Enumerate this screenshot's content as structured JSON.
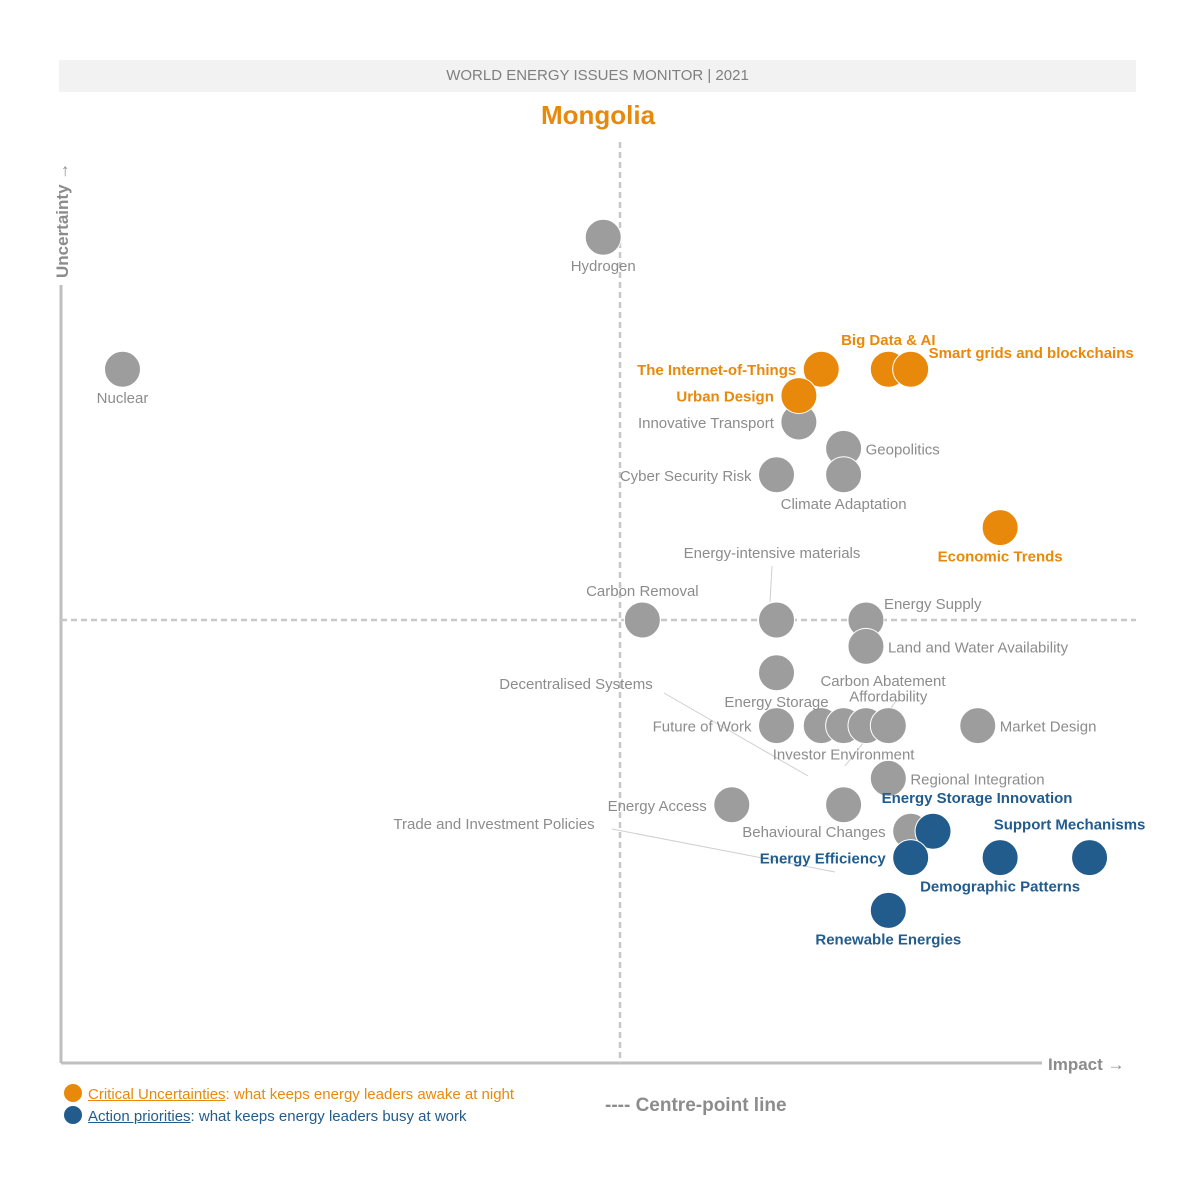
{
  "header": {
    "title": "WORLD ENERGY ISSUES MONITOR | 2021"
  },
  "country": "Mongolia",
  "legend": {
    "critical": {
      "label": "Critical Uncertainties",
      "desc": ": what keeps energy leaders awake at night"
    },
    "action": {
      "label": "Action priorities",
      "desc": ": what keeps energy leaders busy at work"
    },
    "centre_line": "---- Centre-point line"
  },
  "colors": {
    "critical": "#e8890c",
    "action": "#225c8d",
    "other": "#9d9d9d",
    "other_text": "#8c8c8c",
    "axis": "#bfbfbf"
  },
  "chart_data": {
    "type": "scatter",
    "title": "Mongolia",
    "xlabel": "Impact →",
    "ylabel": "Uncertainty →",
    "xlim": [
      0,
      10
    ],
    "ylim": [
      0,
      10
    ],
    "centre_x": 5.0,
    "centre_y": 5.0,
    "grid": false,
    "points": [
      {
        "name": "Hydrogen",
        "category": "other",
        "x": 4.85,
        "y": 9.35,
        "label_pos": "below"
      },
      {
        "name": "Nuclear",
        "category": "other",
        "x": 0.55,
        "y": 7.85,
        "label_pos": "below"
      },
      {
        "name": "Big Data & AI",
        "category": "critical",
        "x": 7.4,
        "y": 7.85,
        "label_pos": "above"
      },
      {
        "name": "Smart grids and blockchains",
        "category": "critical",
        "x": 7.6,
        "y": 7.85,
        "label_pos": "right-up"
      },
      {
        "name": "The Internet-of-Things",
        "category": "critical",
        "x": 6.8,
        "y": 7.85,
        "label_pos": "left"
      },
      {
        "name": "Urban Design",
        "category": "critical",
        "x": 6.6,
        "y": 7.55,
        "label_pos": "left"
      },
      {
        "name": "Innovative Transport",
        "category": "other",
        "x": 6.6,
        "y": 7.25,
        "label_pos": "left"
      },
      {
        "name": "Geopolitics",
        "category": "other",
        "x": 7.0,
        "y": 6.95,
        "label_pos": "right"
      },
      {
        "name": "Cyber Security Risk",
        "category": "other",
        "x": 6.4,
        "y": 6.65,
        "label_pos": "left"
      },
      {
        "name": "Climate Adaptation",
        "category": "other",
        "x": 7.0,
        "y": 6.65,
        "label_pos": "below"
      },
      {
        "name": "Economic Trends",
        "category": "critical",
        "x": 8.4,
        "y": 6.05,
        "label_pos": "below"
      },
      {
        "name": "Carbon Removal",
        "category": "other",
        "x": 5.2,
        "y": 5.0,
        "label_pos": "above"
      },
      {
        "name": "Energy-intensive materials",
        "category": "other",
        "x": 6.4,
        "y": 5.0,
        "label_pos": "callout"
      },
      {
        "name": "Energy Supply",
        "category": "other",
        "x": 7.2,
        "y": 5.0,
        "label_pos": "right-up"
      },
      {
        "name": "Land and Water Availability",
        "category": "other",
        "x": 7.2,
        "y": 4.7,
        "label_pos": "right"
      },
      {
        "name": "Energy Storage",
        "category": "other",
        "x": 6.4,
        "y": 4.4,
        "label_pos": "below"
      },
      {
        "name": "Future of Work",
        "category": "other",
        "x": 6.4,
        "y": 3.8,
        "label_pos": "left"
      },
      {
        "name": "Decentralised Systems",
        "category": "other",
        "x": 6.8,
        "y": 3.8,
        "label_pos": "callout"
      },
      {
        "name": "Investor Environment",
        "category": "other",
        "x": 7.0,
        "y": 3.8,
        "label_pos": "below"
      },
      {
        "name": "Carbon Abatement",
        "category": "other",
        "x": 7.2,
        "y": 3.8,
        "label_pos": "callout"
      },
      {
        "name": "Affordability",
        "category": "other",
        "x": 7.4,
        "y": 3.8,
        "label_pos": "above"
      },
      {
        "name": "Market Design",
        "category": "other",
        "x": 8.2,
        "y": 3.8,
        "label_pos": "right"
      },
      {
        "name": "Regional Integration",
        "category": "other",
        "x": 7.4,
        "y": 3.2,
        "label_pos": "right"
      },
      {
        "name": "Energy Access",
        "category": "other",
        "x": 6.0,
        "y": 2.9,
        "label_pos": "left"
      },
      {
        "name": "Trade and Investment Policies",
        "category": "other",
        "x": 7.0,
        "y": 2.9,
        "label_pos": "callout"
      },
      {
        "name": "Energy Storage Innovation",
        "category": "action",
        "x": 7.8,
        "y": 2.6,
        "label_pos": "above-right"
      },
      {
        "name": "Behavioural Changes",
        "category": "other",
        "x": 7.6,
        "y": 2.6,
        "label_pos": "left"
      },
      {
        "name": "Energy Efficiency",
        "category": "action",
        "x": 7.6,
        "y": 2.3,
        "label_pos": "left"
      },
      {
        "name": "Demographic Patterns",
        "category": "action",
        "x": 8.4,
        "y": 2.3,
        "label_pos": "below"
      },
      {
        "name": "Support Mechanisms",
        "category": "action",
        "x": 9.2,
        "y": 2.3,
        "label_pos": "above-left"
      },
      {
        "name": "Renewable Energies",
        "category": "action",
        "x": 7.4,
        "y": 1.7,
        "label_pos": "below"
      }
    ]
  }
}
